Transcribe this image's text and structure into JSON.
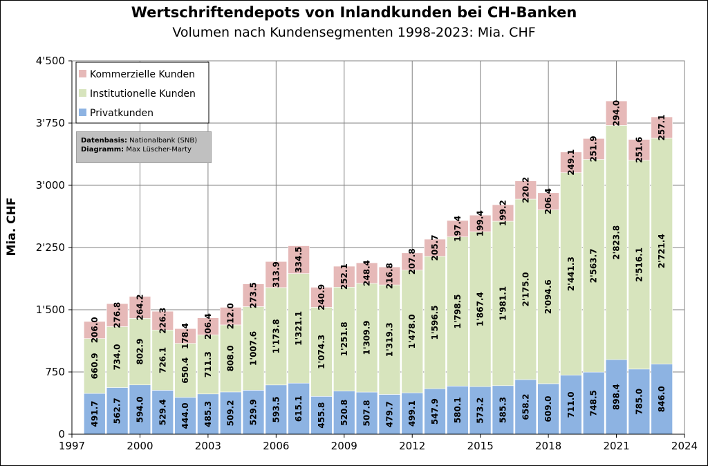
{
  "title": "Wertschriftendepots von Inlandkunden bei CH-Banken",
  "subtitle": "Volumen nach Kundensegmenten 1998-2023: Mia. CHF",
  "source": {
    "data_label": "Datenbasis:",
    "data_value": "Nationalbank (SNB)",
    "chart_label": "Diagramm:",
    "chart_value": "Max Lüscher-Marty"
  },
  "colors": {
    "privat": "#8db3e2",
    "institutionell": "#d7e4bd",
    "kommerziell": "#e6b9b8",
    "grid": "#808080"
  },
  "chart_data": {
    "type": "bar",
    "stacked": true,
    "title": "Wertschriftendepots von Inlandkunden bei CH-Banken",
    "subtitle": "Volumen nach Kundensegmenten 1998-2023: Mia. CHF",
    "xlabel": "",
    "ylabel": "Mia. CHF",
    "xlim": [
      1997,
      2024
    ],
    "ylim": [
      0,
      4500
    ],
    "x_ticks": [
      "1997",
      "2000",
      "2003",
      "2006",
      "2009",
      "2012",
      "2015",
      "2018",
      "2021",
      "2024"
    ],
    "y_ticks": [
      "0",
      "750",
      "1'500",
      "2'250",
      "3'000",
      "3'750",
      "4'500"
    ],
    "grid": true,
    "legend_position": "top-left",
    "categories": [
      1998,
      1999,
      2000,
      2001,
      2002,
      2003,
      2004,
      2005,
      2006,
      2007,
      2008,
      2009,
      2010,
      2011,
      2012,
      2013,
      2014,
      2015,
      2016,
      2017,
      2018,
      2019,
      2020,
      2021,
      2022,
      2023
    ],
    "series": [
      {
        "name": "Privatkunden",
        "values": [
          491.7,
          562.7,
          594.0,
          529.4,
          444.0,
          485.3,
          509.2,
          529.9,
          593.5,
          615.1,
          455.8,
          520.8,
          507.8,
          479.7,
          499.1,
          547.9,
          580.1,
          573.2,
          585.3,
          658.2,
          609.0,
          711.0,
          748.5,
          898.4,
          785.0,
          846.0
        ],
        "labels": [
          "491.7",
          "562.7",
          "594.0",
          "529.4",
          "444.0",
          "485.3",
          "509.2",
          "529.9",
          "593.5",
          "615.1",
          "455.8",
          "520.8",
          "507.8",
          "479.7",
          "499.1",
          "547.9",
          "580.1",
          "573.2",
          "585.3",
          "658.2",
          "609.0",
          "711.0",
          "748.5",
          "898.4",
          "785.0",
          "846.0"
        ]
      },
      {
        "name": "Institutionelle Kunden",
        "values": [
          660.9,
          734.0,
          802.9,
          726.1,
          650.4,
          711.3,
          808.0,
          1007.6,
          1173.8,
          1321.1,
          1074.3,
          1251.8,
          1309.9,
          1319.3,
          1478.0,
          1596.5,
          1798.5,
          1867.4,
          1981.1,
          2175.0,
          2094.6,
          2441.3,
          2563.7,
          2823.8,
          2516.1,
          2721.4
        ],
        "labels": [
          "660.9",
          "734.0",
          "802.9",
          "726.1",
          "650.4",
          "711.3",
          "808.0",
          "1'007.6",
          "1'173.8",
          "1'321.1",
          "1'074.3",
          "1'251.8",
          "1'309.9",
          "1'319.3",
          "1'478.0",
          "1'596.5",
          "1'798.5",
          "1'867.4",
          "1'981.1",
          "2'175.0",
          "2'094.6",
          "2'441.3",
          "2'563.7",
          "2'823.8",
          "2'516.1",
          "2'721.4"
        ]
      },
      {
        "name": "Kommerzielle Kunden",
        "values": [
          206.0,
          276.8,
          264.2,
          226.3,
          178.4,
          206.4,
          212.0,
          273.5,
          313.9,
          334.5,
          240.9,
          252.1,
          248.4,
          216.8,
          207.8,
          205.7,
          197.4,
          199.4,
          199.2,
          220.2,
          206.4,
          249.1,
          251.9,
          294.0,
          251.6,
          257.1
        ],
        "labels": [
          "206.0",
          "276.8",
          "264.2",
          "226.3",
          "178.4",
          "206.4",
          "212.0",
          "273.5",
          "313.9",
          "334.5",
          "240.9",
          "252.1",
          "248.4",
          "216.8",
          "207.8",
          "205.7",
          "197.4",
          "199.4",
          "199.2",
          "220.2",
          "206.4",
          "249.1",
          "251.9",
          "294.0",
          "251.6",
          "257.1"
        ]
      }
    ],
    "legend": [
      "Kommerzielle Kunden",
      "Institutionelle Kunden",
      "Privatkunden"
    ]
  }
}
